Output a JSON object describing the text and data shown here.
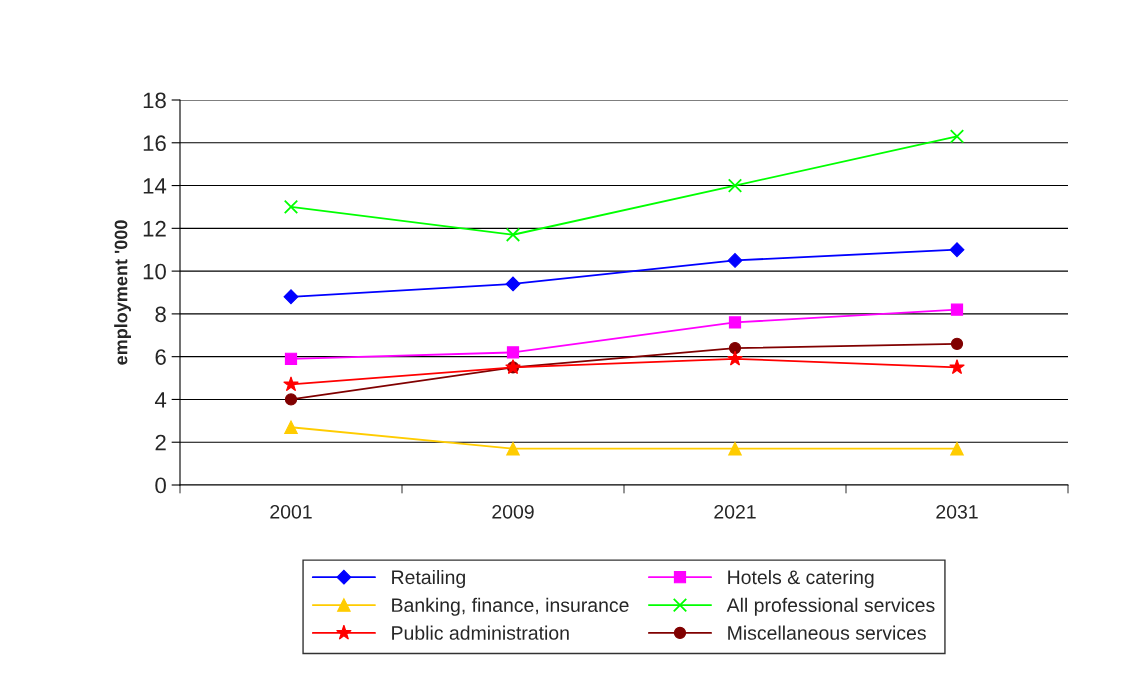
{
  "chart_data": {
    "type": "line",
    "ylabel": "employment '000",
    "categories": [
      "2001",
      "2009",
      "2021",
      "2031"
    ],
    "ylim": [
      0,
      18
    ],
    "yticks": [
      0,
      2,
      4,
      6,
      8,
      10,
      12,
      14,
      16,
      18
    ],
    "grid": "y",
    "legend": "bottom",
    "series": [
      {
        "name": "Retailing",
        "color": "#0000ff",
        "marker": "diamond",
        "values": [
          8.8,
          9.4,
          10.5,
          11.0
        ]
      },
      {
        "name": "Hotels & catering",
        "color": "#ff00ff",
        "marker": "square",
        "values": [
          5.9,
          6.2,
          7.6,
          8.2
        ]
      },
      {
        "name": "Banking, finance, insurance",
        "color": "#ffcc00",
        "marker": "triangle",
        "values": [
          2.7,
          1.7,
          1.7,
          1.7
        ]
      },
      {
        "name": "All professional services",
        "color": "#00ff00",
        "marker": "cross",
        "values": [
          13.0,
          11.7,
          14.0,
          16.3
        ]
      },
      {
        "name": "Public administration",
        "color": "#ff0000",
        "marker": "star",
        "values": [
          4.7,
          5.5,
          5.9,
          5.5
        ]
      },
      {
        "name": "Miscellaneous services",
        "color": "#800000",
        "marker": "circle",
        "values": [
          4.0,
          5.5,
          6.4,
          6.6
        ]
      }
    ]
  }
}
